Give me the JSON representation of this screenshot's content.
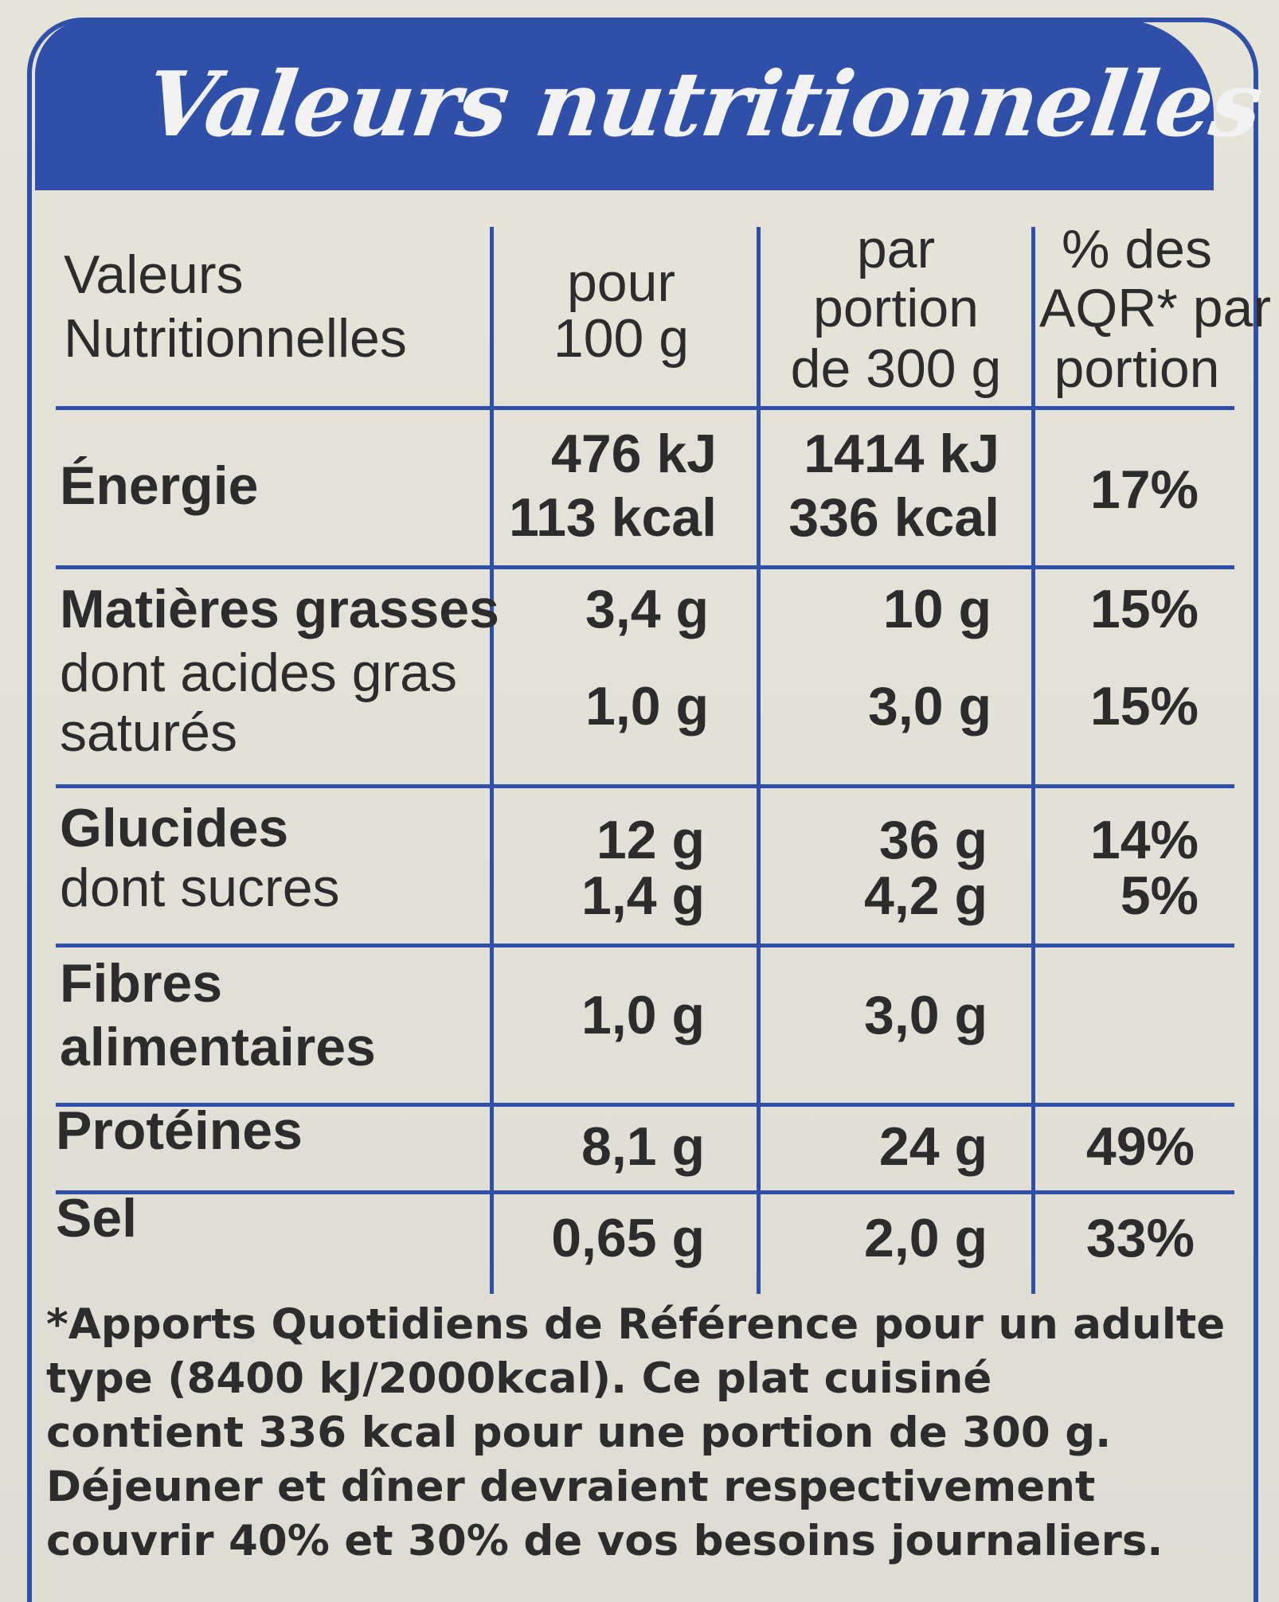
{
  "title": "Valeurs nutritionnelles",
  "header": {
    "col0_line1": "Valeurs",
    "col0_line2": "Nutritionnelles",
    "col1_line1": "pour",
    "col1_line2": "100 g",
    "col2_line1": "par",
    "col2_line2": "portion",
    "col2_line3": "de 300 g",
    "col3_line1": "% des",
    "col3_line2": "AQR* par",
    "col3_line3": "portion"
  },
  "rows": {
    "energie": {
      "label": "Énergie",
      "per100_kj": "476 kJ",
      "per100_kcal": "113 kcal",
      "portion_kj": "1414 kJ",
      "portion_kcal": "336 kcal",
      "aqr": "17%"
    },
    "matieres_grasses": {
      "label": "Matières grasses",
      "per100": "3,4 g",
      "portion": "10 g",
      "aqr": "15%"
    },
    "acides_gras": {
      "label_line1": "dont acides gras",
      "label_line2": "saturés",
      "per100": "1,0 g",
      "portion": "3,0 g",
      "aqr": "15%"
    },
    "glucides": {
      "label": "Glucides",
      "per100": "12 g",
      "portion": "36 g",
      "aqr": "14%"
    },
    "sucres": {
      "label": "dont sucres",
      "per100": "1,4 g",
      "portion": "4,2 g",
      "aqr": "5%"
    },
    "fibres": {
      "label_line1": "Fibres",
      "label_line2": "alimentaires",
      "per100": "1,0 g",
      "portion": "3,0 g",
      "aqr": ""
    },
    "proteines": {
      "label": "Protéines",
      "per100": "8,1 g",
      "portion": "24 g",
      "aqr": "49%"
    },
    "sel": {
      "label": "Sel",
      "per100": "0,65 g",
      "portion": "2,0 g",
      "aqr": "33%"
    }
  },
  "footnote": {
    "line1": "*Apports Quotidiens de Référence pour un adulte",
    "line2": "type (8400 kJ/2000kcal). Ce plat cuisiné",
    "line3": "contient 336 kcal pour une portion de 300 g.",
    "line4": "Déjeuner et dîner devraient respectivement",
    "line5": "couvrir 40% et 30% de vos besoins journaliers."
  },
  "colors": {
    "accent": "#2f4fa8",
    "background": "#e4e2d8",
    "text": "#2c2c2c"
  }
}
